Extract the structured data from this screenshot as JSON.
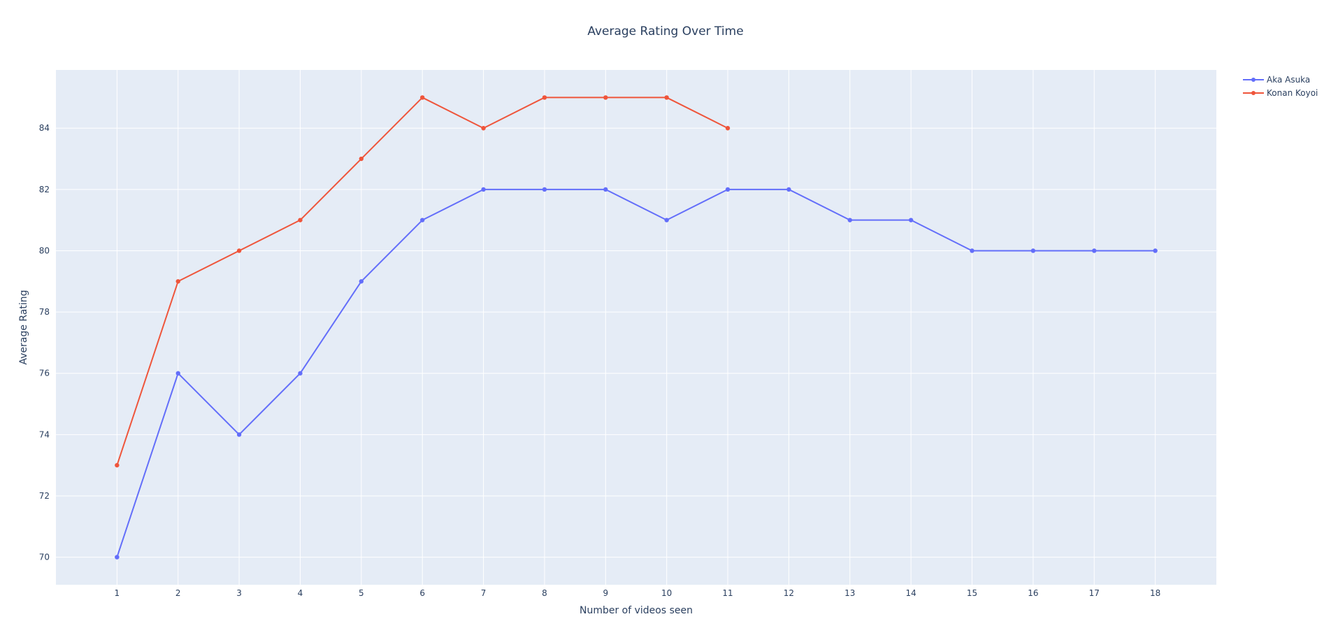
{
  "chart_data": {
    "type": "line",
    "title": "Average Rating Over Time",
    "xlabel": "Number of videos seen",
    "ylabel": "Average Rating",
    "x_ticks": [
      1,
      2,
      3,
      4,
      5,
      6,
      7,
      8,
      9,
      10,
      11,
      12,
      13,
      14,
      15,
      16,
      17,
      18
    ],
    "y_ticks": [
      70,
      72,
      74,
      76,
      78,
      80,
      82,
      84
    ],
    "xlim": [
      0.0,
      19.0
    ],
    "ylim": [
      69.1,
      85.9
    ],
    "grid": true,
    "legend_position": "top-right",
    "plot_background": "#e5ecf6",
    "series": [
      {
        "name": "Aka Asuka",
        "color": "#636efa",
        "x": [
          1,
          2,
          3,
          4,
          5,
          6,
          7,
          8,
          9,
          10,
          11,
          12,
          13,
          14,
          15,
          16,
          17,
          18
        ],
        "y": [
          70,
          76,
          74,
          76,
          79,
          81,
          82,
          82,
          82,
          81,
          82,
          82,
          81,
          81,
          80,
          80,
          80,
          80
        ]
      },
      {
        "name": "Konan Koyoi",
        "color": "#ef553b",
        "x": [
          1,
          2,
          3,
          4,
          5,
          6,
          7,
          8,
          9,
          10,
          11
        ],
        "y": [
          73,
          79,
          80,
          81,
          83,
          85,
          84,
          85,
          85,
          85,
          84
        ]
      }
    ]
  }
}
